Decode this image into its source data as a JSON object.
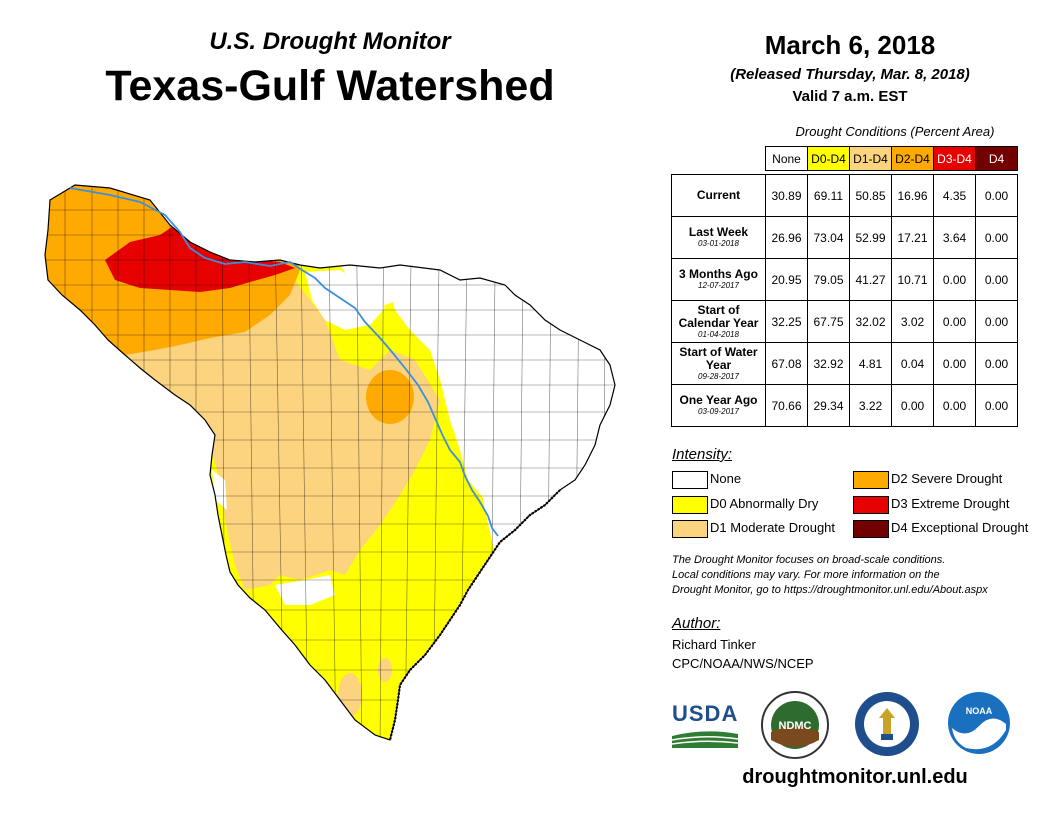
{
  "header": {
    "subtitle": "U.S. Drought Monitor",
    "title": "Texas-Gulf Watershed",
    "date": "March 6, 2018",
    "released": "(Released Thursday, Mar. 8, 2018)",
    "valid": "Valid 7 a.m. EST"
  },
  "table": {
    "caption": "Drought Conditions (Percent Area)",
    "columns": [
      "None",
      "D0-D4",
      "D1-D4",
      "D2-D4",
      "D3-D4",
      "D4"
    ],
    "rows": [
      {
        "label": "Current",
        "date": "",
        "values": [
          "30.89",
          "69.11",
          "50.85",
          "16.96",
          "4.35",
          "0.00"
        ]
      },
      {
        "label": "Last Week",
        "date": "03-01-2018",
        "values": [
          "26.96",
          "73.04",
          "52.99",
          "17.21",
          "3.64",
          "0.00"
        ]
      },
      {
        "label": "3 Months Ago",
        "date": "12-07-2017",
        "values": [
          "20.95",
          "79.05",
          "41.27",
          "10.71",
          "0.00",
          "0.00"
        ]
      },
      {
        "label": "Start of Calendar Year",
        "date": "01-04-2018",
        "values": [
          "32.25",
          "67.75",
          "32.02",
          "3.02",
          "0.00",
          "0.00"
        ]
      },
      {
        "label": "Start of Water Year",
        "date": "09-28-2017",
        "values": [
          "67.08",
          "32.92",
          "4.81",
          "0.04",
          "0.00",
          "0.00"
        ]
      },
      {
        "label": "One Year Ago",
        "date": "03-09-2017",
        "values": [
          "70.66",
          "29.34",
          "3.22",
          "0.00",
          "0.00",
          "0.00"
        ]
      }
    ]
  },
  "legend": {
    "title": "Intensity:",
    "items": [
      {
        "label": "None",
        "color": "#ffffff"
      },
      {
        "label": "D0 Abnormally Dry",
        "color": "#ffff00"
      },
      {
        "label": "D1 Moderate Drought",
        "color": "#fcd37f"
      },
      {
        "label": "D2 Severe Drought",
        "color": "#ffaa00"
      },
      {
        "label": "D3 Extreme Drought",
        "color": "#e60000"
      },
      {
        "label": "D4 Exceptional Drought",
        "color": "#730000"
      }
    ]
  },
  "note": {
    "line1": "The Drought Monitor focuses on broad-scale conditions.",
    "line2": "Local conditions may vary. For more information on the",
    "line3": "Drought Monitor, go to https://droughtmonitor.unl.edu/About.aspx"
  },
  "author": {
    "title": "Author:",
    "name": "Richard Tinker",
    "org": "CPC/NOAA/NWS/NCEP"
  },
  "logos": {
    "usda": "USDA",
    "ndmc": "NDMC",
    "noaa": "NOAA"
  },
  "website": "droughtmonitor.unl.edu",
  "colors": {
    "none": "#ffffff",
    "d0": "#ffff00",
    "d1": "#fcd37f",
    "d2": "#ffaa00",
    "d3": "#e60000",
    "d4": "#730000",
    "river": "#3c8fdc"
  }
}
